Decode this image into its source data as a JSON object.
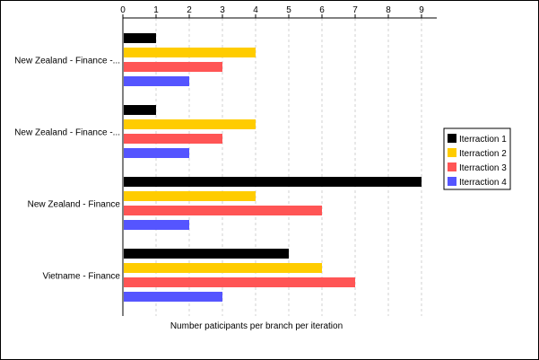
{
  "chart_data": {
    "type": "bar",
    "orientation": "horizontal",
    "xlabel": "Number paticipants per branch per iteration",
    "xlim": [
      0,
      9.4
    ],
    "xticks": [
      0,
      1,
      2,
      3,
      4,
      5,
      6,
      7,
      8,
      9
    ],
    "x_axis_position": "top",
    "grid": "vertical dashed",
    "legend_position": "right",
    "categories": [
      "New Zealand - Finance -...",
      "New Zealand - Finance -...",
      "New Zealand - Finance",
      "Vietname - Finance"
    ],
    "series": [
      {
        "name": "Iterraction 1",
        "color": "#000000",
        "values": [
          1,
          1,
          9,
          5
        ]
      },
      {
        "name": "Iterraction 2",
        "color": "#FFCC00",
        "values": [
          4,
          4,
          4,
          6
        ]
      },
      {
        "name": "Iterraction 3",
        "color": "#FF5555",
        "values": [
          3,
          3,
          6,
          7
        ]
      },
      {
        "name": "Iterraction 4",
        "color": "#5555FF",
        "values": [
          2,
          2,
          2,
          3
        ]
      }
    ]
  }
}
